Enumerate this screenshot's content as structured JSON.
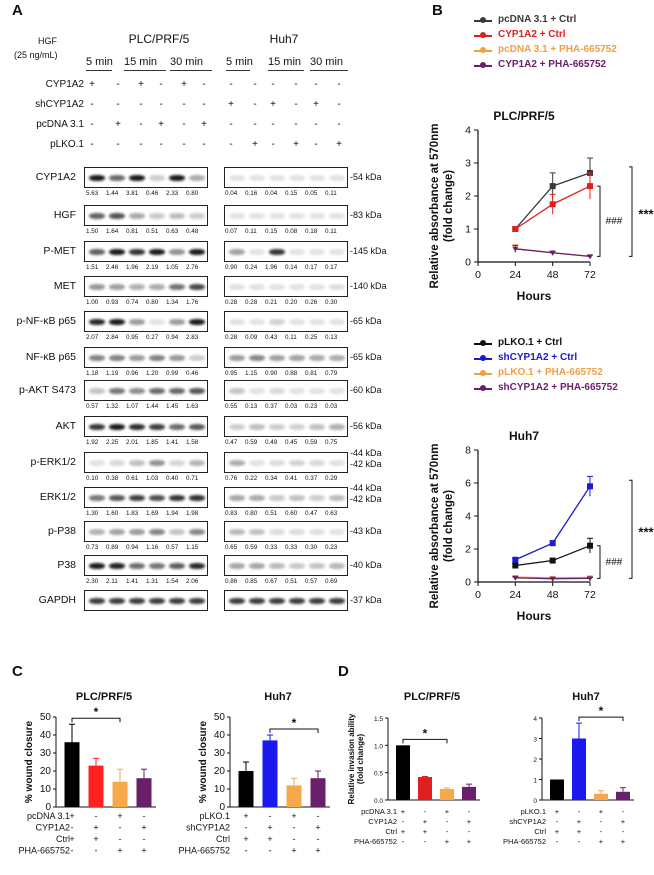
{
  "panel_labels": {
    "a": "A",
    "b": "B",
    "c": "C",
    "d": "D"
  },
  "panelA": {
    "hgf_label": [
      "HGF",
      "(25 ng/mL)"
    ],
    "cell_lines": [
      "PLC/PRF/5",
      "Huh7"
    ],
    "times": [
      "5 min",
      "15 min",
      "30 min"
    ],
    "treatment_rows": [
      {
        "label": "CYP1A2",
        "left": [
          "+",
          "-",
          "+",
          "-",
          "+",
          "-"
        ],
        "right": [
          "-",
          "-",
          "-",
          "-",
          "-",
          "-"
        ]
      },
      {
        "label": "shCYP1A2",
        "left": [
          "-",
          "-",
          "-",
          "-",
          "-",
          "-"
        ],
        "right": [
          "+",
          "-",
          "+",
          "-",
          "+",
          "-"
        ]
      },
      {
        "label": "pcDNA 3.1",
        "left": [
          "-",
          "+",
          "-",
          "+",
          "-",
          "+"
        ],
        "right": [
          "-",
          "-",
          "-",
          "-",
          "-",
          "-"
        ]
      },
      {
        "label": "pLKO.1",
        "left": [
          "-",
          "-",
          "-",
          "-",
          "-",
          "-"
        ],
        "right": [
          "-",
          "+",
          "-",
          "+",
          "-",
          "+"
        ]
      }
    ],
    "blots": [
      {
        "label": "CYP1A2",
        "kda": "-54 kDa",
        "q_left": [
          "5.63",
          "1.44",
          "3.81",
          "0.46",
          "2.33",
          "0.80"
        ],
        "q_right": [
          "0.04",
          "0.16",
          "0.04",
          "0.15",
          "0.05",
          "0.11"
        ]
      },
      {
        "label": "HGF",
        "kda": "-83 kDa",
        "q_left": [
          "1.50",
          "1.64",
          "0.81",
          "0.51",
          "0.63",
          "0.48"
        ],
        "q_right": [
          "0.07",
          "0.11",
          "0.15",
          "0.08",
          "0.18",
          "0.11"
        ]
      },
      {
        "label": "P-MET",
        "kda": "-145 kDa",
        "q_left": [
          "1.51",
          "2.46",
          "1.96",
          "2.19",
          "1.05",
          "2.76"
        ],
        "q_right": [
          "0.90",
          "0.24",
          "1.96",
          "0.14",
          "0.17",
          "0.17"
        ]
      },
      {
        "label": "MET",
        "kda": "-140 kDa",
        "q_left": [
          "1.00",
          "0.93",
          "0.74",
          "0.80",
          "1.34",
          "1.76"
        ],
        "q_right": [
          "0.28",
          "0.28",
          "0.21",
          "0.20",
          "0.26",
          "0.30"
        ]
      },
      {
        "label": "p-NF-κB p65",
        "kda": "-65 kDa",
        "q_left": [
          "2.07",
          "2.84",
          "0.95",
          "0.27",
          "0.94",
          "2.83"
        ],
        "q_right": [
          "0.28",
          "0.09",
          "0.43",
          "0.11",
          "0.25",
          "0.13"
        ]
      },
      {
        "label": "NF-κB p65",
        "kda": "-65 kDa",
        "q_left": [
          "1.18",
          "1.19",
          "0.96",
          "1.20",
          "0.99",
          "0.46"
        ],
        "q_right": [
          "0.95",
          "1.15",
          "0.90",
          "0.88",
          "0.81",
          "0.79"
        ]
      },
      {
        "label": "p-AKT S473",
        "kda": "-60 kDa",
        "q_left": [
          "0.57",
          "1.32",
          "1.07",
          "1.44",
          "1.45",
          "1.63"
        ],
        "q_right": [
          "0.55",
          "0.13",
          "0.37",
          "0.03",
          "0.23",
          "0.03"
        ]
      },
      {
        "label": "AKT",
        "kda": "-56 kDa",
        "q_left": [
          "1.92",
          "2.25",
          "2.01",
          "1.85",
          "1.41",
          "1.58"
        ],
        "q_right": [
          "0.47",
          "0.59",
          "0.49",
          "0.45",
          "0.59",
          "0.75"
        ]
      },
      {
        "label": "p-ERK1/2",
        "kda": "-44 kDa",
        "kda2": "-42 kDa",
        "q_left": [
          "0.10",
          "0.38",
          "0.61",
          "1.03",
          "0.40",
          "0.71"
        ],
        "q_right": [
          "0.76",
          "0.22",
          "0.34",
          "0.41",
          "0.37",
          "0.29"
        ]
      },
      {
        "label": "ERK1/2",
        "kda": "-44 kDa",
        "kda2": "-42 kDa",
        "q_left": [
          "1.30",
          "1.60",
          "1.83",
          "1.69",
          "1.94",
          "1.98"
        ],
        "q_right": [
          "0.83",
          "0.80",
          "0.51",
          "0.60",
          "0.47",
          "0.63"
        ]
      },
      {
        "label": "p-P38",
        "kda": "-43 kDa",
        "q_left": [
          "0.73",
          "0.89",
          "0.94",
          "1.16",
          "0.57",
          "1.15"
        ],
        "q_right": [
          "0.65",
          "0.59",
          "0.33",
          "0.33",
          "0.30",
          "0.23"
        ]
      },
      {
        "label": "P38",
        "kda": "-40 kDa",
        "q_left": [
          "2.30",
          "2.11",
          "1.41",
          "1.31",
          "1.54",
          "2.06"
        ],
        "q_right": [
          "0.86",
          "0.85",
          "0.67",
          "0.51",
          "0.57",
          "0.69"
        ]
      },
      {
        "label": "GAPDH",
        "kda": "-37 kDa",
        "q_left": [],
        "q_right": []
      }
    ]
  },
  "chart_data": [
    {
      "id": "B1",
      "type": "line",
      "title": "PLC/PRF/5",
      "xlabel": "Hours",
      "ylabel": "Relative absorbance at 570nm (fold change)",
      "x": [
        24,
        48,
        72
      ],
      "xticks": [
        "0",
        "24",
        "48",
        "72"
      ],
      "xlim": [
        0,
        72
      ],
      "yticks": [
        "0",
        "1",
        "2",
        "3",
        "4"
      ],
      "ylim": [
        0,
        4
      ],
      "series": [
        {
          "name": "pcDNA 3.1 + Ctrl",
          "color": "#3a3a3a",
          "values": [
            1.0,
            2.3,
            2.7
          ],
          "err": [
            0.05,
            0.4,
            0.45
          ]
        },
        {
          "name": "CYP1A2 + Ctrl",
          "color": "#e02020",
          "values": [
            1.0,
            1.75,
            2.3
          ],
          "err": [
            0.05,
            0.3,
            0.4
          ]
        },
        {
          "name": "pcDNA 3.1 + PHA-665752",
          "color": "#f0a040",
          "values": [
            0.4,
            0.28,
            0.17
          ],
          "err": [
            0.12,
            0.05,
            0.04
          ]
        },
        {
          "name": "CYP1A2 + PHA-665752",
          "color": "#6a1f6a",
          "values": [
            0.4,
            0.28,
            0.17
          ],
          "err": [
            0.1,
            0.05,
            0.04
          ]
        }
      ],
      "annotations": [
        "###",
        "***"
      ]
    },
    {
      "id": "B2",
      "type": "line",
      "title": "Huh7",
      "xlabel": "Hours",
      "ylabel": "Relative absorbance at 570nm (fold change)",
      "x": [
        24,
        48,
        72
      ],
      "xticks": [
        "0",
        "24",
        "48",
        "72"
      ],
      "xlim": [
        0,
        72
      ],
      "yticks": [
        "0",
        "2",
        "4",
        "6",
        "8"
      ],
      "ylim": [
        0,
        8
      ],
      "series": [
        {
          "name": "pLKO.1 + Ctrl",
          "color": "#111111",
          "values": [
            1.0,
            1.3,
            2.2
          ],
          "err": [
            0.1,
            0.1,
            0.45
          ]
        },
        {
          "name": "shCYP1A2 + Ctrl",
          "color": "#1a1ad0",
          "values": [
            1.35,
            2.35,
            5.8
          ],
          "err": [
            0.1,
            0.15,
            0.6
          ]
        },
        {
          "name": "pLKO.1 + PHA-665752",
          "color": "#f0a040",
          "values": [
            0.3,
            0.25,
            0.28
          ],
          "err": [
            0.05,
            0.05,
            0.05
          ]
        },
        {
          "name": "shCYP1A2 + PHA-665752",
          "color": "#6a1f6a",
          "values": [
            0.25,
            0.2,
            0.22
          ],
          "err": [
            0.05,
            0.05,
            0.05
          ]
        }
      ],
      "annotations": [
        "###",
        "***"
      ]
    },
    {
      "id": "C1",
      "type": "bar",
      "title": "PLC/PRF/5",
      "ylabel": "% wound closure",
      "yticks": [
        "0",
        "10",
        "20",
        "30",
        "40",
        "50"
      ],
      "ylim": [
        0,
        50
      ],
      "values": [
        36,
        23,
        14,
        16
      ],
      "err": [
        10,
        4,
        7,
        5
      ],
      "colors": [
        "#000000",
        "#ff2020",
        "#f5a94a",
        "#6a1f6a"
      ],
      "star": "*",
      "star_bars": [
        0,
        2
      ],
      "cond_labels": [
        "pcDNA 3.1",
        "CYP1A2",
        "Ctrl",
        "PHA-665752"
      ],
      "cond_signs": [
        [
          "+",
          "-",
          "+",
          "-"
        ],
        [
          "-",
          "+",
          "-",
          "+"
        ],
        [
          "+",
          "+",
          "-",
          "-"
        ],
        [
          "-",
          "-",
          "+",
          "+"
        ]
      ]
    },
    {
      "id": "C2",
      "type": "bar",
      "title": "Huh7",
      "ylabel": "% wound closure",
      "yticks": [
        "0",
        "10",
        "20",
        "30",
        "40",
        "50"
      ],
      "ylim": [
        0,
        50
      ],
      "values": [
        20,
        37,
        12,
        16
      ],
      "err": [
        5,
        3,
        4,
        4
      ],
      "colors": [
        "#000000",
        "#1a1aee",
        "#f5a94a",
        "#6a1f6a"
      ],
      "star": "*",
      "star_bars": [
        1,
        3
      ],
      "cond_labels": [
        "pLKO.1",
        "shCYP1A2",
        "Ctrl",
        "PHA-665752"
      ],
      "cond_signs": [
        [
          "+",
          "-",
          "+",
          "-"
        ],
        [
          "-",
          "+",
          "-",
          "+"
        ],
        [
          "+",
          "+",
          "-",
          "-"
        ],
        [
          "-",
          "-",
          "+",
          "+"
        ]
      ]
    },
    {
      "id": "D1",
      "type": "bar",
      "title": "PLC/PRF/5",
      "ylabel": "Relative invasion ability (fold change)",
      "yticks": [
        "0.0",
        "0.5",
        "1.0",
        "1.5"
      ],
      "ylim": [
        0,
        1.5
      ],
      "values": [
        1.0,
        0.42,
        0.2,
        0.24
      ],
      "err": [
        0.0,
        0.01,
        0.02,
        0.05
      ],
      "colors": [
        "#000000",
        "#e02020",
        "#f5a94a",
        "#6a1f6a"
      ],
      "star": "*",
      "star_bars": [
        0,
        2
      ],
      "cond_labels": [
        "pcDNA 3.1",
        "CYP1A2",
        "Ctrl",
        "PHA-665752"
      ],
      "cond_signs": [
        [
          "+",
          "-",
          "+",
          "-"
        ],
        [
          "-",
          "+",
          "-",
          "+"
        ],
        [
          "+",
          "+",
          "-",
          "-"
        ],
        [
          "-",
          "-",
          "+",
          "+"
        ]
      ]
    },
    {
      "id": "D2",
      "type": "bar",
      "title": "Huh7",
      "ylabel": "",
      "yticks": [
        "0",
        "1",
        "2",
        "3",
        "4"
      ],
      "ylim": [
        0,
        4
      ],
      "values": [
        1.0,
        3.0,
        0.3,
        0.4
      ],
      "err": [
        0.0,
        0.75,
        0.15,
        0.2
      ],
      "colors": [
        "#000000",
        "#1a1aee",
        "#f5a94a",
        "#6a1f6a"
      ],
      "star": "*",
      "star_bars": [
        1,
        3
      ],
      "cond_labels": [
        "pLKO.1",
        "shCYP1A2",
        "Ctrl",
        "PHA-665752"
      ],
      "cond_signs": [
        [
          "+",
          "-",
          "+",
          "-"
        ],
        [
          "-",
          "+",
          "-",
          "+"
        ],
        [
          "+",
          "+",
          "-",
          "-"
        ],
        [
          "-",
          "-",
          "+",
          "+"
        ]
      ]
    }
  ]
}
